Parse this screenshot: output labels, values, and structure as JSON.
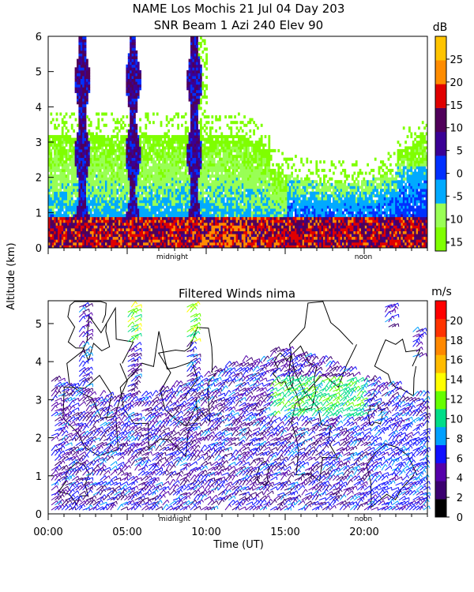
{
  "header": {
    "line1": "NAME Los Mochis   21 Jul 04 Day 203",
    "line2": "SNR Beam 1 Azi 240 Elev 90"
  },
  "ylabel": "Altitude (km)",
  "xlabel": "Time (UT)",
  "panel_markers": {
    "midnight": "midnight",
    "noon": "noon"
  },
  "colors": {
    "snr_scale": [
      "#7fff00",
      "#99ff55",
      "#00aaff",
      "#0030ff",
      "#3a0095",
      "#50005a",
      "#e00000",
      "#ff8c00",
      "#ffc400"
    ],
    "wind_scale": [
      "#000000",
      "#3b0070",
      "#5500aa",
      "#1010ff",
      "#00a0ff",
      "#00dd88",
      "#66ff00",
      "#ffff00",
      "#ffbb00",
      "#ff8800",
      "#ff3300",
      "#ff0000"
    ]
  },
  "chart_data": [
    {
      "type": "heatmap",
      "title": "",
      "ylim": [
        0,
        6
      ],
      "xlim": [
        0,
        24
      ],
      "yticks": [
        "0",
        "1",
        "2",
        "3",
        "4",
        "5",
        "6"
      ],
      "colorbar": {
        "unit": "dB",
        "ticks": [
          "-15",
          "-10",
          "-5",
          "0",
          "5",
          "10",
          "15",
          "20",
          "25"
        ],
        "range": [
          -17,
          30
        ]
      },
      "features": {
        "low_echo_top_km": 0.8,
        "clutter_layer_top_km": 3.2,
        "vertical_streaks_hours": [
          2.1,
          5.3,
          9.2
        ],
        "noon_enhancement_top_km": 2.3
      }
    },
    {
      "type": "scatter",
      "title": "Filtered Winds nima",
      "ylim": [
        0,
        5.6
      ],
      "xlim": [
        0,
        24
      ],
      "xticks": [
        "00:00",
        "05:00",
        "10:00",
        "15:00",
        "20:00"
      ],
      "yticks": [
        "0",
        "1",
        "2",
        "3",
        "4",
        "5"
      ],
      "colorbar": {
        "unit": "m/s",
        "ticks": [
          "0",
          "2",
          "4",
          "6",
          "8",
          "10",
          "12",
          "14",
          "16",
          "18",
          "20"
        ],
        "range": [
          0,
          22
        ]
      },
      "features": {
        "typical_speed_ms": [
          2,
          8
        ],
        "strong_winds_above_km": 4.5,
        "strong_speed_ms": 14
      }
    }
  ]
}
